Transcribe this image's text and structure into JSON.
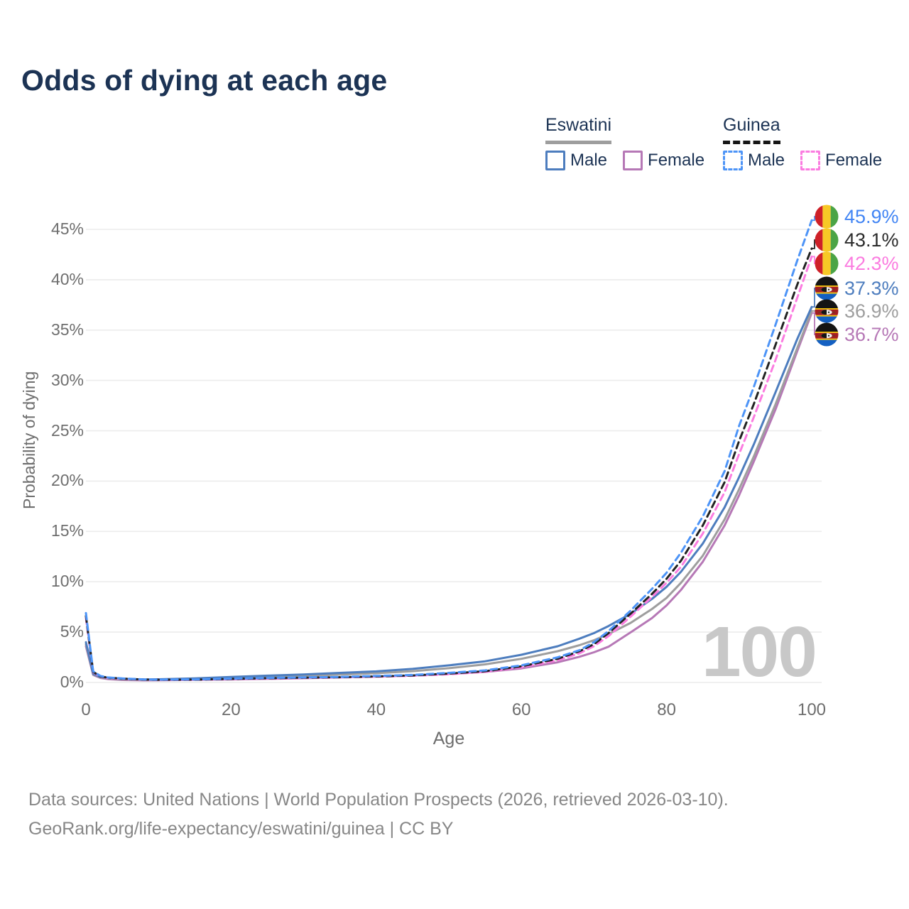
{
  "title": "Odds of dying at each age",
  "legend": {
    "groups": [
      {
        "name": "Eswatini",
        "line_style": "solid",
        "items": [
          {
            "label": "Male",
            "color": "#4d7dbe"
          },
          {
            "label": "Female",
            "color": "#b678b6"
          }
        ]
      },
      {
        "name": "Guinea",
        "line_style": "dashed",
        "items": [
          {
            "label": "Male",
            "color": "#4d94f7"
          },
          {
            "label": "Female",
            "color": "#fb7ce0"
          }
        ]
      }
    ]
  },
  "watermark": "100",
  "chart_data": {
    "type": "line",
    "title": "Odds of dying at each age",
    "xlabel": "Age",
    "ylabel": "Probability of dying",
    "xlim": [
      0,
      100
    ],
    "ylim_percent": [
      0,
      47
    ],
    "x_ticks": [
      0,
      20,
      40,
      60,
      80,
      100
    ],
    "y_ticks_percent": [
      0,
      5,
      10,
      15,
      20,
      25,
      30,
      35,
      40,
      45
    ],
    "grid": true,
    "legend_position": "top-right",
    "series": [
      {
        "name": "Eswatini Female",
        "color": "#b678b6",
        "dashed": false,
        "end_value": "36.7%",
        "points": [
          [
            0,
            3.6
          ],
          [
            1,
            0.75
          ],
          [
            2,
            0.45
          ],
          [
            3,
            0.34
          ],
          [
            5,
            0.25
          ],
          [
            8,
            0.21
          ],
          [
            10,
            0.22
          ],
          [
            15,
            0.26
          ],
          [
            20,
            0.3
          ],
          [
            25,
            0.36
          ],
          [
            30,
            0.42
          ],
          [
            35,
            0.5
          ],
          [
            40,
            0.58
          ],
          [
            45,
            0.7
          ],
          [
            50,
            0.85
          ],
          [
            55,
            1.05
          ],
          [
            60,
            1.4
          ],
          [
            65,
            2.0
          ],
          [
            68,
            2.55
          ],
          [
            70,
            3.0
          ],
          [
            72,
            3.55
          ],
          [
            75,
            4.95
          ],
          [
            78,
            6.4
          ],
          [
            80,
            7.65
          ],
          [
            82,
            9.2
          ],
          [
            85,
            12.0
          ],
          [
            88,
            15.6
          ],
          [
            90,
            18.6
          ],
          [
            92,
            21.9
          ],
          [
            95,
            27.1
          ],
          [
            98,
            32.9
          ],
          [
            100,
            36.7
          ]
        ]
      },
      {
        "name": "Eswatini",
        "color": "#9e9e9e",
        "dashed": false,
        "end_value": "36.9%",
        "points": [
          [
            0,
            3.8
          ],
          [
            1,
            0.8
          ],
          [
            2,
            0.5
          ],
          [
            3,
            0.4
          ],
          [
            5,
            0.3
          ],
          [
            8,
            0.26
          ],
          [
            10,
            0.27
          ],
          [
            15,
            0.33
          ],
          [
            20,
            0.45
          ],
          [
            25,
            0.55
          ],
          [
            30,
            0.65
          ],
          [
            35,
            0.78
          ],
          [
            40,
            0.92
          ],
          [
            45,
            1.12
          ],
          [
            50,
            1.42
          ],
          [
            55,
            1.8
          ],
          [
            60,
            2.35
          ],
          [
            65,
            3.1
          ],
          [
            68,
            3.7
          ],
          [
            70,
            4.2
          ],
          [
            72,
            4.8
          ],
          [
            75,
            5.9
          ],
          [
            78,
            7.3
          ],
          [
            80,
            8.4
          ],
          [
            82,
            9.9
          ],
          [
            85,
            12.6
          ],
          [
            88,
            16.2
          ],
          [
            90,
            19.2
          ],
          [
            92,
            22.4
          ],
          [
            95,
            27.6
          ],
          [
            98,
            33.2
          ],
          [
            100,
            36.9
          ]
        ]
      },
      {
        "name": "Eswatini Male",
        "color": "#4d7dbe",
        "dashed": false,
        "end_value": "37.3%",
        "points": [
          [
            0,
            4.0
          ],
          [
            1,
            0.85
          ],
          [
            2,
            0.55
          ],
          [
            3,
            0.45
          ],
          [
            5,
            0.35
          ],
          [
            8,
            0.3
          ],
          [
            10,
            0.32
          ],
          [
            15,
            0.4
          ],
          [
            20,
            0.55
          ],
          [
            25,
            0.68
          ],
          [
            30,
            0.8
          ],
          [
            35,
            0.95
          ],
          [
            40,
            1.1
          ],
          [
            45,
            1.35
          ],
          [
            50,
            1.7
          ],
          [
            55,
            2.1
          ],
          [
            60,
            2.75
          ],
          [
            65,
            3.6
          ],
          [
            68,
            4.35
          ],
          [
            70,
            4.9
          ],
          [
            72,
            5.6
          ],
          [
            75,
            6.8
          ],
          [
            78,
            8.3
          ],
          [
            80,
            9.5
          ],
          [
            82,
            11.0
          ],
          [
            85,
            13.8
          ],
          [
            88,
            17.4
          ],
          [
            90,
            20.4
          ],
          [
            92,
            23.6
          ],
          [
            95,
            28.8
          ],
          [
            98,
            34.1
          ],
          [
            100,
            37.3
          ]
        ]
      },
      {
        "name": "Guinea Female",
        "color": "#fb7ce0",
        "dashed": true,
        "end_value": "42.3%",
        "points": [
          [
            0,
            6.4
          ],
          [
            1,
            1.0
          ],
          [
            2,
            0.58
          ],
          [
            3,
            0.45
          ],
          [
            5,
            0.36
          ],
          [
            8,
            0.28
          ],
          [
            10,
            0.26
          ],
          [
            15,
            0.27
          ],
          [
            20,
            0.33
          ],
          [
            25,
            0.4
          ],
          [
            30,
            0.45
          ],
          [
            35,
            0.5
          ],
          [
            40,
            0.57
          ],
          [
            45,
            0.66
          ],
          [
            50,
            0.82
          ],
          [
            55,
            1.05
          ],
          [
            60,
            1.5
          ],
          [
            65,
            2.2
          ],
          [
            68,
            2.9
          ],
          [
            70,
            3.6
          ],
          [
            72,
            4.6
          ],
          [
            75,
            6.5
          ],
          [
            78,
            8.5
          ],
          [
            80,
            9.9
          ],
          [
            82,
            11.5
          ],
          [
            85,
            14.8
          ],
          [
            88,
            18.9
          ],
          [
            90,
            22.7
          ],
          [
            92,
            26.3
          ],
          [
            95,
            32.0
          ],
          [
            98,
            38.2
          ],
          [
            100,
            42.3
          ]
        ]
      },
      {
        "name": "Guinea",
        "color": "#222222",
        "dashed": true,
        "end_value": "43.1%",
        "points": [
          [
            0,
            6.6
          ],
          [
            1,
            1.05
          ],
          [
            2,
            0.6
          ],
          [
            3,
            0.48
          ],
          [
            5,
            0.38
          ],
          [
            8,
            0.29
          ],
          [
            10,
            0.27
          ],
          [
            15,
            0.28
          ],
          [
            20,
            0.35
          ],
          [
            25,
            0.42
          ],
          [
            30,
            0.47
          ],
          [
            35,
            0.52
          ],
          [
            40,
            0.6
          ],
          [
            45,
            0.7
          ],
          [
            50,
            0.88
          ],
          [
            55,
            1.12
          ],
          [
            60,
            1.6
          ],
          [
            65,
            2.35
          ],
          [
            68,
            3.1
          ],
          [
            70,
            3.8
          ],
          [
            72,
            4.9
          ],
          [
            75,
            6.8
          ],
          [
            78,
            8.8
          ],
          [
            80,
            10.3
          ],
          [
            82,
            12.1
          ],
          [
            85,
            15.6
          ],
          [
            88,
            19.9
          ],
          [
            90,
            24.0
          ],
          [
            92,
            27.6
          ],
          [
            95,
            33.5
          ],
          [
            98,
            39.5
          ],
          [
            100,
            43.1
          ]
        ]
      },
      {
        "name": "Guinea Male",
        "color": "#4d94f7",
        "dashed": true,
        "end_value": "45.9%",
        "points": [
          [
            0,
            6.9
          ],
          [
            1,
            1.1
          ],
          [
            2,
            0.65
          ],
          [
            3,
            0.5
          ],
          [
            5,
            0.4
          ],
          [
            8,
            0.3
          ],
          [
            10,
            0.28
          ],
          [
            15,
            0.3
          ],
          [
            20,
            0.38
          ],
          [
            25,
            0.45
          ],
          [
            30,
            0.5
          ],
          [
            35,
            0.55
          ],
          [
            40,
            0.65
          ],
          [
            45,
            0.75
          ],
          [
            50,
            0.95
          ],
          [
            55,
            1.2
          ],
          [
            60,
            1.7
          ],
          [
            65,
            2.5
          ],
          [
            68,
            3.2
          ],
          [
            70,
            4.0
          ],
          [
            72,
            5.1
          ],
          [
            75,
            7.1
          ],
          [
            78,
            9.3
          ],
          [
            80,
            10.9
          ],
          [
            82,
            12.9
          ],
          [
            85,
            16.5
          ],
          [
            88,
            21.0
          ],
          [
            90,
            25.5
          ],
          [
            92,
            29.3
          ],
          [
            95,
            35.5
          ],
          [
            98,
            41.9
          ],
          [
            100,
            45.9
          ]
        ]
      }
    ]
  },
  "end_labels": [
    {
      "value": "45.9%",
      "color": "#4285f4",
      "flag": "guinea",
      "series": "Guinea Male"
    },
    {
      "value": "43.1%",
      "color": "#2b2b2b",
      "flag": "guinea",
      "series": "Guinea"
    },
    {
      "value": "42.3%",
      "color": "#fb7ce0",
      "flag": "guinea",
      "series": "Guinea Female"
    },
    {
      "value": "37.3%",
      "color": "#4d7dbe",
      "flag": "eswatini",
      "series": "Eswatini Male"
    },
    {
      "value": "36.9%",
      "color": "#9e9e9e",
      "flag": "eswatini",
      "series": "Eswatini"
    },
    {
      "value": "36.7%",
      "color": "#b678b6",
      "flag": "eswatini",
      "series": "Eswatini Female"
    }
  ],
  "footer": {
    "line1": "Data sources: United Nations | World Population Prospects (2026, retrieved 2026-03-10).",
    "line2": "GeoRank.org/life-expectancy/eswatini/guinea | CC BY"
  }
}
